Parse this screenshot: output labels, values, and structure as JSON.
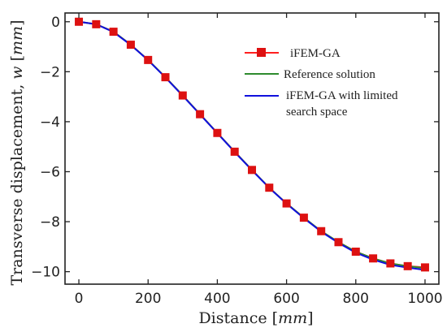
{
  "chart_data": {
    "type": "line",
    "xlabel": {
      "text": "Distance ",
      "unit": "mm"
    },
    "ylabel": {
      "text": "Transverse displacement, ",
      "var": "w",
      "unit": "mm"
    },
    "xlim": [
      -40,
      1040
    ],
    "ylim": [
      -10.5,
      0.35
    ],
    "xticks": [
      0,
      200,
      400,
      600,
      800,
      1000
    ],
    "yticks": [
      0,
      -2,
      -4,
      -6,
      -8,
      -10
    ],
    "grid": false,
    "legend_position": "upper right",
    "series": [
      {
        "name": "iFEM-GA",
        "color": "#ff2020",
        "marker": "square",
        "marker_color": "#dd1111",
        "x": [
          0,
          50,
          100,
          150,
          200,
          250,
          300,
          350,
          400,
          450,
          500,
          550,
          600,
          650,
          700,
          750,
          800,
          850,
          900,
          950,
          1000
        ],
        "y": [
          0.0,
          -0.1,
          -0.4,
          -0.92,
          -1.53,
          -2.22,
          -2.95,
          -3.7,
          -4.45,
          -5.2,
          -5.93,
          -6.64,
          -7.27,
          -7.84,
          -8.38,
          -8.82,
          -9.2,
          -9.47,
          -9.67,
          -9.78,
          -9.83
        ]
      },
      {
        "name": "Reference solution",
        "color": "#2e8b2e",
        "marker": "none",
        "x": [
          0,
          50,
          100,
          150,
          200,
          250,
          300,
          350,
          400,
          450,
          500,
          550,
          600,
          650,
          700,
          750,
          800,
          850,
          900,
          950,
          1000
        ],
        "y": [
          0.0,
          -0.1,
          -0.4,
          -0.92,
          -1.53,
          -2.22,
          -2.95,
          -3.7,
          -4.45,
          -5.2,
          -5.93,
          -6.64,
          -7.27,
          -7.84,
          -8.38,
          -8.82,
          -9.2,
          -9.47,
          -9.67,
          -9.78,
          -9.86
        ]
      },
      {
        "name": "iFEM-GA with limited search space",
        "color": "#1010dd",
        "marker": "none",
        "x": [
          0,
          50,
          100,
          150,
          200,
          250,
          300,
          350,
          400,
          450,
          500,
          550,
          600,
          650,
          700,
          750,
          800,
          850,
          900,
          950,
          1000
        ],
        "y": [
          0.0,
          -0.1,
          -0.41,
          -0.93,
          -1.54,
          -2.23,
          -2.96,
          -3.71,
          -4.46,
          -5.21,
          -5.94,
          -6.65,
          -7.28,
          -7.86,
          -8.4,
          -8.85,
          -9.24,
          -9.52,
          -9.73,
          -9.84,
          -9.93
        ]
      }
    ],
    "legend_labels": [
      "iFEM-GA",
      "Reference solution",
      "iFEM-GA with limited",
      "search space"
    ]
  }
}
